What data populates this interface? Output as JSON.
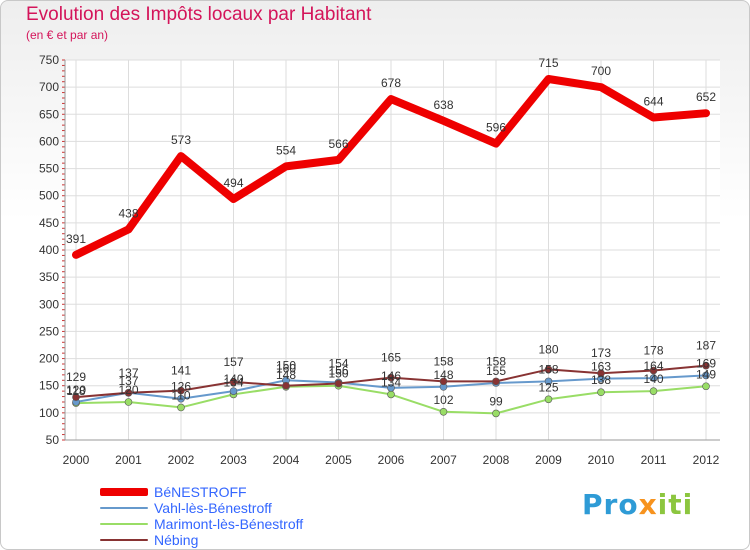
{
  "chart_data": {
    "type": "line",
    "title": "Evolution des Impôts locaux par Habitant",
    "subtitle": "(en € et par an)",
    "x": [
      "2000",
      "2001",
      "2002",
      "2003",
      "2004",
      "2005",
      "2006",
      "2007",
      "2008",
      "2009",
      "2010",
      "2011",
      "2012"
    ],
    "ylim": [
      50,
      750
    ],
    "yticks": [
      50,
      100,
      150,
      200,
      250,
      300,
      350,
      400,
      450,
      500,
      550,
      600,
      650,
      700,
      750
    ],
    "grid": true,
    "legend_position": "bottom-left",
    "series": [
      {
        "name": "BéNESTROFF",
        "color": "#ee0000",
        "values": [
          391,
          438,
          573,
          494,
          554,
          566,
          678,
          638,
          596,
          715,
          700,
          644,
          652
        ],
        "labels": [
          "391",
          "438",
          "573",
          "494",
          "554",
          "566",
          "678",
          "638",
          "596",
          "715",
          "700",
          "644",
          "652"
        ]
      },
      {
        "name": "Vahl-lès-Bénestroff",
        "color": "#6699cc",
        "values": [
          120,
          137,
          126,
          140,
          160,
          156,
          146,
          148,
          155,
          158,
          163,
          164,
          169
        ],
        "labels": [
          "120",
          "137",
          "126",
          "140",
          "160",
          "156",
          "146",
          "148",
          "155",
          "158",
          "163",
          "164",
          "169"
        ]
      },
      {
        "name": "Marimont-lès-Bénestroff",
        "color": "#99dd66",
        "values": [
          118,
          120,
          110,
          134,
          148,
          150,
          134,
          102,
          99,
          125,
          138,
          140,
          149
        ],
        "labels": [
          "118",
          "120",
          "110",
          "134",
          "148",
          "150",
          "134",
          "102",
          "99",
          "125",
          "138",
          "140",
          "149"
        ]
      },
      {
        "name": "Nébing",
        "color": "#883333",
        "values": [
          129,
          137,
          141,
          157,
          150,
          154,
          165,
          158,
          158,
          180,
          173,
          178,
          187
        ],
        "labels": [
          "129",
          "137",
          "141",
          "157",
          "150",
          "154",
          "165",
          "158",
          "158",
          "180",
          "173",
          "178",
          "187"
        ]
      }
    ]
  },
  "legend": {
    "items": [
      {
        "label": "BéNESTROFF",
        "color": "#ee0000",
        "thick": 8
      },
      {
        "label": "Vahl-lès-Bénestroff",
        "color": "#6699cc",
        "thick": 2
      },
      {
        "label": "Marimont-lès-Bénestroff",
        "color": "#99dd66",
        "thick": 2
      },
      {
        "label": "Nébing",
        "color": "#883333",
        "thick": 2
      }
    ]
  },
  "logo": {
    "part1": "Pro",
    "part2": "x",
    "part3": "iti"
  }
}
